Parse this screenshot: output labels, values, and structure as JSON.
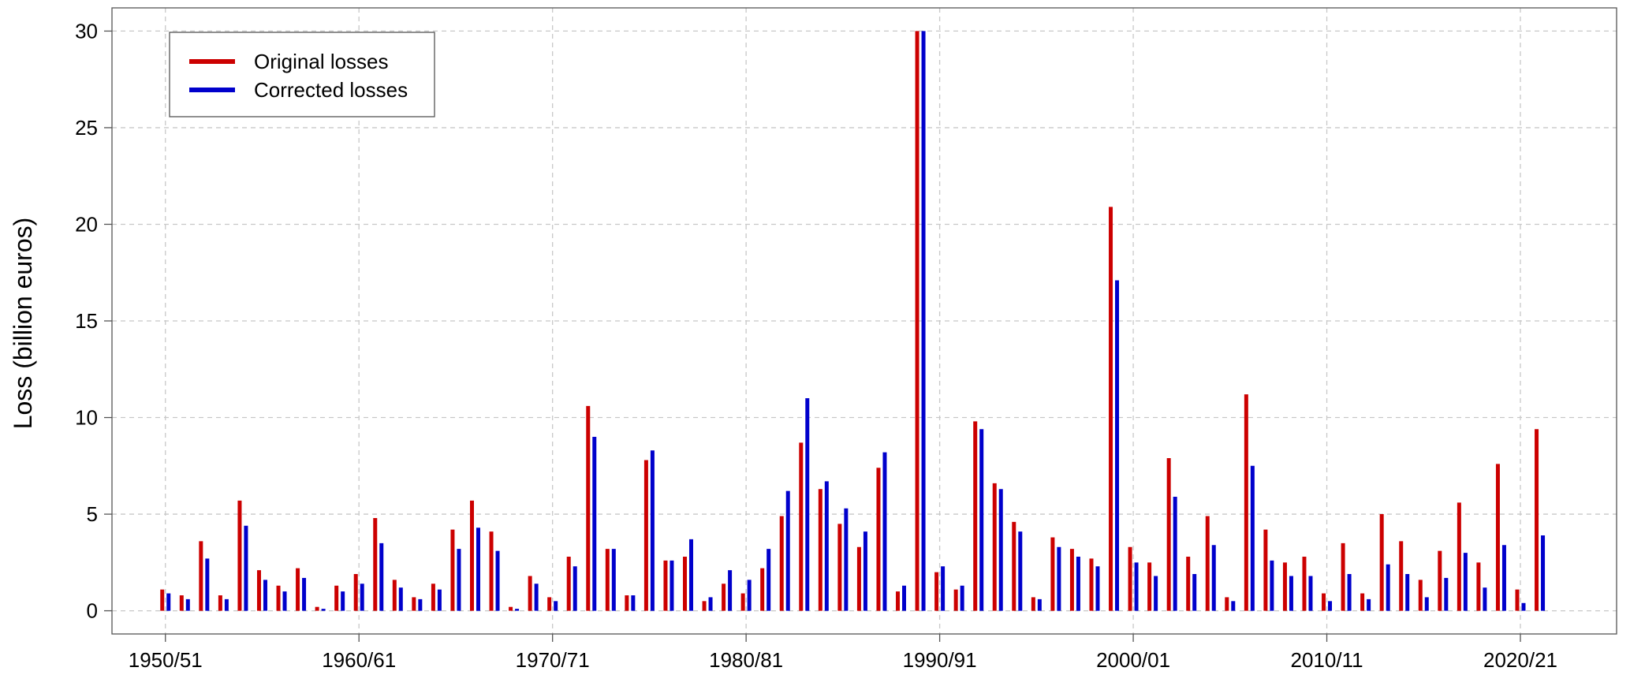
{
  "chart_data": {
    "type": "bar",
    "y_label": "Loss (billion euros)",
    "categories": [
      "1950/51",
      null,
      null,
      null,
      null,
      null,
      null,
      null,
      null,
      null,
      "1960/61",
      null,
      null,
      null,
      null,
      null,
      null,
      null,
      null,
      null,
      "1970/71",
      null,
      null,
      null,
      null,
      null,
      null,
      null,
      null,
      null,
      "1980/81",
      null,
      null,
      null,
      null,
      null,
      null,
      null,
      null,
      null,
      "1990/91",
      null,
      null,
      null,
      null,
      null,
      null,
      null,
      null,
      null,
      "2000/01",
      null,
      null,
      null,
      null,
      null,
      null,
      null,
      null,
      null,
      "2010/11",
      null,
      null,
      null,
      null,
      null,
      null,
      null,
      null,
      null,
      "2020/21",
      null
    ],
    "series": [
      {
        "name": "Original losses",
        "color": "#cc0000",
        "values": [
          1.1,
          0.8,
          3.6,
          0.8,
          5.7,
          2.1,
          1.3,
          2.2,
          0.2,
          1.3,
          1.9,
          4.8,
          1.6,
          0.7,
          1.4,
          4.2,
          5.7,
          4.1,
          0.2,
          1.8,
          0.7,
          2.8,
          10.6,
          3.2,
          0.8,
          7.8,
          2.6,
          2.8,
          0.5,
          1.4,
          0.9,
          2.2,
          4.9,
          8.7,
          6.3,
          4.5,
          3.3,
          7.4,
          1.0,
          30,
          2.0,
          1.1,
          9.8,
          6.6,
          4.6,
          0.7,
          3.8,
          3.2,
          2.7,
          20.9,
          3.3,
          2.5,
          7.9,
          2.8,
          4.9,
          0.7,
          11.2,
          4.2,
          2.5,
          2.8,
          0.9,
          3.5,
          0.9,
          5.0,
          3.6,
          1.6,
          3.1,
          5.6,
          2.5,
          7.6,
          1.1,
          9.4
        ]
      },
      {
        "name": "Corrected losses",
        "color": "#0000cc",
        "values": [
          0.9,
          0.6,
          2.7,
          0.6,
          4.4,
          1.6,
          1.0,
          1.7,
          0.1,
          1.0,
          1.4,
          3.5,
          1.2,
          0.6,
          1.1,
          3.2,
          4.3,
          3.1,
          0.1,
          1.4,
          0.5,
          2.3,
          9.0,
          3.2,
          0.8,
          8.3,
          2.6,
          3.7,
          0.7,
          2.1,
          1.6,
          3.2,
          6.2,
          11.0,
          6.7,
          5.3,
          4.1,
          8.2,
          1.3,
          30,
          2.3,
          1.3,
          9.4,
          6.3,
          4.1,
          0.6,
          3.3,
          2.8,
          2.3,
          17.1,
          2.5,
          1.8,
          5.9,
          1.9,
          3.4,
          0.5,
          7.5,
          2.6,
          1.8,
          1.8,
          0.5,
          1.9,
          0.6,
          2.4,
          1.9,
          0.7,
          1.7,
          3.0,
          1.2,
          3.4,
          0.4,
          3.9
        ]
      }
    ],
    "ylim": [
      -1.2,
      31.2
    ],
    "yticks": [
      0,
      5,
      10,
      15,
      20,
      25,
      30
    ],
    "grid": true,
    "legend": "top-left"
  }
}
